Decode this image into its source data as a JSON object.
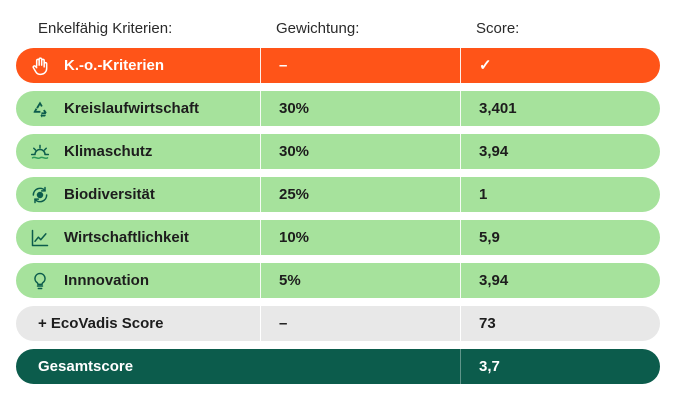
{
  "headers": {
    "criteria": "Enkelfähig Kriterien:",
    "weight": "Gewichtung:",
    "score": "Score:"
  },
  "rows": [
    {
      "label": "K.-o.-Kriterien",
      "weight": "–",
      "score": "✓",
      "icon": "hand-stop-icon",
      "color": "#ff5418"
    },
    {
      "label": "Kreislaufwirtschaft",
      "weight": "30%",
      "score": "3,401",
      "icon": "recycle-icon",
      "color": "#a6e29c"
    },
    {
      "label": "Klimaschutz",
      "weight": "30%",
      "score": "3,94",
      "icon": "sun-horizon-icon",
      "color": "#a6e29c"
    },
    {
      "label": "Biodiversität",
      "weight": "25%",
      "score": "1",
      "icon": "biodiversity-cycle-icon",
      "color": "#a6e29c"
    },
    {
      "label": "Wirtschaftlichkeit",
      "weight": "10%",
      "score": "5,9",
      "icon": "trend-chart-icon",
      "color": "#a6e29c"
    },
    {
      "label": "Innnovation",
      "weight": "5%",
      "score": "3,94",
      "icon": "lightbulb-icon",
      "color": "#a6e29c"
    },
    {
      "label": "+ EcoVadis Score",
      "weight": "–",
      "score": "73",
      "color": "#e8e8e8"
    },
    {
      "label": "Gesamtscore",
      "weight": "",
      "score": "3,7",
      "color": "#0c5c4c"
    }
  ]
}
